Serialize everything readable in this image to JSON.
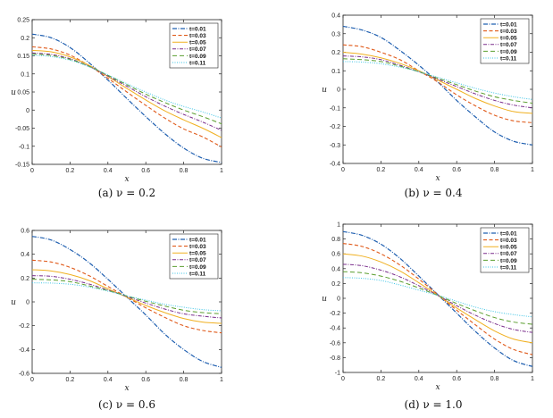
{
  "legend_labels": [
    "t=0.01",
    "t=0.03",
    "t=0.05",
    "t=0.07",
    "t=0.09",
    "t=0.11"
  ],
  "series_colors": [
    "#1f5fb0",
    "#e05a1a",
    "#f0b020",
    "#7a2d8c",
    "#5a9e2e",
    "#3cc4e6"
  ],
  "chart_data": [
    {
      "type": "line",
      "caption": "(a) ν = 0.2",
      "xlabel": "x",
      "ylabel": "u",
      "xlim": [
        0,
        1
      ],
      "ylim": [
        -0.15,
        0.25
      ],
      "xticks": [
        "0",
        "0.2",
        "0.4",
        "0.6",
        "0.8",
        "1"
      ],
      "yticks": [
        "-0.15",
        "-0.1",
        "-0.05",
        "0",
        "0.05",
        "0.1",
        "0.15",
        "0.2",
        "0.25"
      ],
      "legend": "top-right",
      "series": [
        {
          "name": "t=0.01",
          "x": [
            0,
            0.1,
            0.2,
            0.3,
            0.4,
            0.5,
            0.6,
            0.7,
            0.8,
            0.9,
            1
          ],
          "values": [
            0.21,
            0.2,
            0.173,
            0.131,
            0.083,
            0.032,
            -0.018,
            -0.065,
            -0.105,
            -0.133,
            -0.145
          ]
        },
        {
          "name": "t=0.03",
          "x": [
            0,
            0.1,
            0.2,
            0.3,
            0.4,
            0.5,
            0.6,
            0.7,
            0.8,
            0.9,
            1
          ],
          "values": [
            0.175,
            0.169,
            0.152,
            0.123,
            0.088,
            0.05,
            0.013,
            -0.022,
            -0.052,
            -0.074,
            -0.102
          ]
        },
        {
          "name": "t=0.05",
          "x": [
            0,
            0.1,
            0.2,
            0.3,
            0.4,
            0.5,
            0.6,
            0.7,
            0.8,
            0.9,
            1
          ],
          "values": [
            0.165,
            0.161,
            0.147,
            0.124,
            0.093,
            0.06,
            0.028,
            -0.002,
            -0.027,
            -0.05,
            -0.076
          ]
        },
        {
          "name": "t=0.07",
          "x": [
            0,
            0.1,
            0.2,
            0.3,
            0.4,
            0.5,
            0.6,
            0.7,
            0.8,
            0.9,
            1
          ],
          "values": [
            0.158,
            0.154,
            0.142,
            0.121,
            0.094,
            0.066,
            0.037,
            0.011,
            -0.012,
            -0.033,
            -0.056
          ]
        },
        {
          "name": "t=0.09",
          "x": [
            0,
            0.1,
            0.2,
            0.3,
            0.4,
            0.5,
            0.6,
            0.7,
            0.8,
            0.9,
            1
          ],
          "values": [
            0.155,
            0.151,
            0.14,
            0.121,
            0.096,
            0.07,
            0.044,
            0.021,
            0.0,
            -0.018,
            -0.038
          ]
        },
        {
          "name": "t=0.11",
          "x": [
            0,
            0.1,
            0.2,
            0.3,
            0.4,
            0.5,
            0.6,
            0.7,
            0.8,
            0.9,
            1
          ],
          "values": [
            0.152,
            0.148,
            0.138,
            0.12,
            0.097,
            0.073,
            0.05,
            0.028,
            0.01,
            -0.005,
            -0.022
          ]
        }
      ]
    },
    {
      "type": "line",
      "caption": "(b) ν = 0.4",
      "xlabel": "x",
      "ylabel": "u",
      "xlim": [
        0,
        1
      ],
      "ylim": [
        -0.4,
        0.4
      ],
      "xticks": [
        "0",
        "0.2",
        "0.4",
        "0.6",
        "0.8",
        "1"
      ],
      "yticks": [
        "-0.4",
        "-0.3",
        "-0.2",
        "-0.1",
        "0",
        "0.1",
        "0.2",
        "0.3",
        "0.4"
      ],
      "legend": "top-right",
      "series": [
        {
          "name": "t=0.01",
          "x": [
            0,
            0.1,
            0.2,
            0.3,
            0.4,
            0.5,
            0.6,
            0.7,
            0.8,
            0.9,
            1
          ],
          "values": [
            0.34,
            0.32,
            0.28,
            0.21,
            0.13,
            0.04,
            -0.06,
            -0.15,
            -0.23,
            -0.28,
            -0.3
          ]
        },
        {
          "name": "t=0.03",
          "x": [
            0,
            0.1,
            0.2,
            0.3,
            0.4,
            0.5,
            0.6,
            0.7,
            0.8,
            0.9,
            1
          ],
          "values": [
            0.24,
            0.23,
            0.2,
            0.16,
            0.1,
            0.04,
            -0.03,
            -0.09,
            -0.14,
            -0.17,
            -0.18
          ]
        },
        {
          "name": "t=0.05",
          "x": [
            0,
            0.1,
            0.2,
            0.3,
            0.4,
            0.5,
            0.6,
            0.7,
            0.8,
            0.9,
            1
          ],
          "values": [
            0.2,
            0.19,
            0.17,
            0.14,
            0.1,
            0.05,
            0.0,
            -0.05,
            -0.09,
            -0.12,
            -0.13
          ]
        },
        {
          "name": "t=0.07",
          "x": [
            0,
            0.1,
            0.2,
            0.3,
            0.4,
            0.5,
            0.6,
            0.7,
            0.8,
            0.9,
            1
          ],
          "values": [
            0.18,
            0.175,
            0.16,
            0.13,
            0.095,
            0.055,
            0.015,
            -0.025,
            -0.06,
            -0.085,
            -0.1
          ]
        },
        {
          "name": "t=0.09",
          "x": [
            0,
            0.1,
            0.2,
            0.3,
            0.4,
            0.5,
            0.6,
            0.7,
            0.8,
            0.9,
            1
          ],
          "values": [
            0.165,
            0.16,
            0.15,
            0.125,
            0.095,
            0.06,
            0.025,
            -0.01,
            -0.04,
            -0.06,
            -0.075
          ]
        },
        {
          "name": "t=0.11",
          "x": [
            0,
            0.1,
            0.2,
            0.3,
            0.4,
            0.5,
            0.6,
            0.7,
            0.8,
            0.9,
            1
          ],
          "values": [
            0.15,
            0.147,
            0.138,
            0.12,
            0.095,
            0.065,
            0.035,
            0.005,
            -0.02,
            -0.04,
            -0.055
          ]
        }
      ]
    },
    {
      "type": "line",
      "caption": "(c) ν = 0.6",
      "xlabel": "x",
      "ylabel": "u",
      "xlim": [
        0,
        1
      ],
      "ylim": [
        -0.6,
        0.6
      ],
      "xticks": [
        "0",
        "0.2",
        "0.4",
        "0.6",
        "0.8",
        "1"
      ],
      "yticks": [
        "-0.6",
        "-0.4",
        "-0.2",
        "0",
        "0.2",
        "0.4",
        "0.6"
      ],
      "legend": "top-right",
      "series": [
        {
          "name": "t=0.01",
          "x": [
            0,
            0.1,
            0.2,
            0.3,
            0.4,
            0.5,
            0.6,
            0.7,
            0.8,
            0.9,
            1
          ],
          "values": [
            0.55,
            0.52,
            0.44,
            0.33,
            0.19,
            0.04,
            -0.11,
            -0.27,
            -0.4,
            -0.5,
            -0.55
          ]
        },
        {
          "name": "t=0.03",
          "x": [
            0,
            0.1,
            0.2,
            0.3,
            0.4,
            0.5,
            0.6,
            0.7,
            0.8,
            0.9,
            1
          ],
          "values": [
            0.35,
            0.335,
            0.29,
            0.22,
            0.13,
            0.04,
            -0.05,
            -0.13,
            -0.2,
            -0.24,
            -0.26
          ]
        },
        {
          "name": "t=0.05",
          "x": [
            0,
            0.1,
            0.2,
            0.3,
            0.4,
            0.5,
            0.6,
            0.7,
            0.8,
            0.9,
            1
          ],
          "values": [
            0.27,
            0.26,
            0.23,
            0.18,
            0.11,
            0.04,
            -0.03,
            -0.09,
            -0.14,
            -0.17,
            -0.18
          ]
        },
        {
          "name": "t=0.07",
          "x": [
            0,
            0.1,
            0.2,
            0.3,
            0.4,
            0.5,
            0.6,
            0.7,
            0.8,
            0.9,
            1
          ],
          "values": [
            0.22,
            0.215,
            0.19,
            0.15,
            0.1,
            0.045,
            -0.01,
            -0.06,
            -0.1,
            -0.12,
            -0.135
          ]
        },
        {
          "name": "t=0.09",
          "x": [
            0,
            0.1,
            0.2,
            0.3,
            0.4,
            0.5,
            0.6,
            0.7,
            0.8,
            0.9,
            1
          ],
          "values": [
            0.19,
            0.185,
            0.17,
            0.135,
            0.095,
            0.05,
            0.005,
            -0.035,
            -0.07,
            -0.09,
            -0.1
          ]
        },
        {
          "name": "t=0.11",
          "x": [
            0,
            0.1,
            0.2,
            0.3,
            0.4,
            0.5,
            0.6,
            0.7,
            0.8,
            0.9,
            1
          ],
          "values": [
            0.16,
            0.158,
            0.148,
            0.125,
            0.09,
            0.05,
            0.015,
            -0.02,
            -0.045,
            -0.065,
            -0.075
          ]
        }
      ]
    },
    {
      "type": "line",
      "caption": "(d) ν = 1.0",
      "xlabel": "x",
      "ylabel": "u",
      "xlim": [
        0,
        1
      ],
      "ylim": [
        -1,
        1
      ],
      "xticks": [
        "0",
        "0.2",
        "0.4",
        "0.6",
        "0.8",
        "1"
      ],
      "yticks": [
        "-1",
        "-0.8",
        "-0.6",
        "-0.4",
        "-0.2",
        "0",
        "0.2",
        "0.4",
        "0.6",
        "0.8",
        "1"
      ],
      "legend": "top-right",
      "series": [
        {
          "name": "t=0.01",
          "x": [
            0,
            0.1,
            0.2,
            0.3,
            0.4,
            0.5,
            0.6,
            0.7,
            0.8,
            0.9,
            1
          ],
          "values": [
            0.9,
            0.85,
            0.73,
            0.54,
            0.3,
            0.05,
            -0.2,
            -0.45,
            -0.67,
            -0.84,
            -0.92
          ]
        },
        {
          "name": "t=0.03",
          "x": [
            0,
            0.1,
            0.2,
            0.3,
            0.4,
            0.5,
            0.6,
            0.7,
            0.8,
            0.9,
            1
          ],
          "values": [
            0.74,
            0.7,
            0.6,
            0.45,
            0.26,
            0.05,
            -0.16,
            -0.36,
            -0.55,
            -0.69,
            -0.76
          ]
        },
        {
          "name": "t=0.05",
          "x": [
            0,
            0.1,
            0.2,
            0.3,
            0.4,
            0.5,
            0.6,
            0.7,
            0.8,
            0.9,
            1
          ],
          "values": [
            0.6,
            0.57,
            0.49,
            0.37,
            0.21,
            0.04,
            -0.13,
            -0.29,
            -0.44,
            -0.55,
            -0.6
          ]
        },
        {
          "name": "t=0.07",
          "x": [
            0,
            0.1,
            0.2,
            0.3,
            0.4,
            0.5,
            0.6,
            0.7,
            0.8,
            0.9,
            1
          ],
          "values": [
            0.46,
            0.44,
            0.38,
            0.29,
            0.17,
            0.04,
            -0.1,
            -0.23,
            -0.34,
            -0.42,
            -0.46
          ]
        },
        {
          "name": "t=0.09",
          "x": [
            0,
            0.1,
            0.2,
            0.3,
            0.4,
            0.5,
            0.6,
            0.7,
            0.8,
            0.9,
            1
          ],
          "values": [
            0.36,
            0.345,
            0.3,
            0.23,
            0.14,
            0.04,
            -0.07,
            -0.17,
            -0.26,
            -0.32,
            -0.35
          ]
        },
        {
          "name": "t=0.11",
          "x": [
            0,
            0.1,
            0.2,
            0.3,
            0.4,
            0.5,
            0.6,
            0.7,
            0.8,
            0.9,
            1
          ],
          "values": [
            0.28,
            0.27,
            0.24,
            0.18,
            0.11,
            0.04,
            -0.04,
            -0.12,
            -0.18,
            -0.22,
            -0.25
          ]
        }
      ]
    }
  ]
}
